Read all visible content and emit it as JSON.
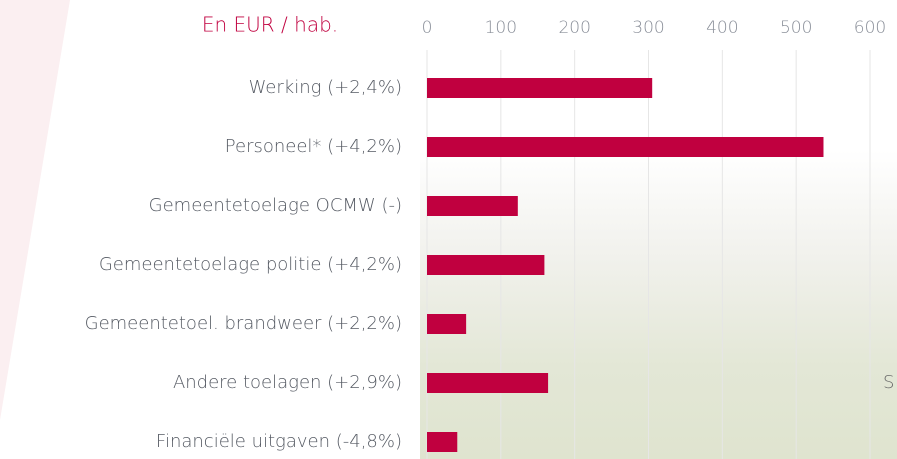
{
  "chart_data": {
    "type": "hbar",
    "title": "En EUR / hab.",
    "categories": [
      "Werking (+2,4%)",
      "Personeel* (+4,2%)",
      "Gemeentetoelage OCMW (-)",
      "Gemeentetoelage politie (+4,2%)",
      "Gemeentetoel. brandweer (+2,2%)",
      "Andere toelagen (+2,9%)",
      "Financiële uitgaven (-4,8%)"
    ],
    "values": [
      305,
      537,
      123,
      159,
      53,
      164,
      41
    ],
    "color": "#c0003f",
    "xlim": [
      0,
      600
    ],
    "xticks": [
      0,
      100,
      200,
      300,
      400,
      500,
      600
    ],
    "annotation": "S"
  }
}
